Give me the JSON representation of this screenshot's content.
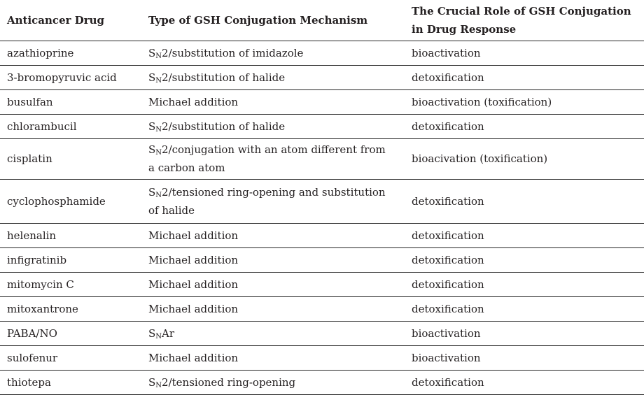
{
  "colors": {
    "background": "#ffffff",
    "text": "#231f20",
    "rule": "#262626"
  },
  "table": {
    "columns": [
      "Anticancer Drug",
      "Type of GSH Conjugation Mechanism",
      "The Crucial Role of GSH Conjugation in Drug Response"
    ],
    "rows": [
      {
        "drug": "azathioprine",
        "mech_pre": "S",
        "mech_sub": "N",
        "mech_post": "2/substitution of imidazole",
        "role": "bioactivation"
      },
      {
        "drug": "3-bromopyruvic acid",
        "mech_pre": "S",
        "mech_sub": "N",
        "mech_post": "2/substitution of halide",
        "role": "detoxification"
      },
      {
        "drug": "busulfan",
        "mech_pre": "Michael addition",
        "mech_sub": "",
        "mech_post": "",
        "role": "bioactivation (toxification)"
      },
      {
        "drug": "chlorambucil",
        "mech_pre": "S",
        "mech_sub": "N",
        "mech_post": "2/substitution of halide",
        "role": "detoxification"
      },
      {
        "drug": "cisplatin",
        "mech_pre": "S",
        "mech_sub": "N",
        "mech_post": "2/conjugation with an atom different from a carbon atom",
        "role": "bioacivation (toxification)"
      },
      {
        "drug": "cyclophosphamide",
        "mech_pre": "S",
        "mech_sub": "N",
        "mech_post": "2/tensioned ring-opening and substitution of halide",
        "role": "detoxification"
      },
      {
        "drug": "helenalin",
        "mech_pre": "Michael addition",
        "mech_sub": "",
        "mech_post": "",
        "role": "detoxification"
      },
      {
        "drug": "infigratinib",
        "mech_pre": "Michael addition",
        "mech_sub": "",
        "mech_post": "",
        "role": "detoxification"
      },
      {
        "drug": "mitomycin C",
        "mech_pre": "Michael addition",
        "mech_sub": "",
        "mech_post": "",
        "role": "detoxification"
      },
      {
        "drug": "mitoxantrone",
        "mech_pre": "Michael addition",
        "mech_sub": "",
        "mech_post": "",
        "role": "detoxification"
      },
      {
        "drug": "PABA/NO",
        "mech_pre": "S",
        "mech_sub": "N",
        "mech_post": "Ar",
        "role": "bioactivation"
      },
      {
        "drug": "sulofenur",
        "mech_pre": "Michael addition",
        "mech_sub": "",
        "mech_post": "",
        "role": "bioactivation"
      },
      {
        "drug": "thiotepa",
        "mech_pre": "S",
        "mech_sub": "N",
        "mech_post": "2/tensioned ring-opening",
        "role": "detoxification"
      }
    ]
  }
}
